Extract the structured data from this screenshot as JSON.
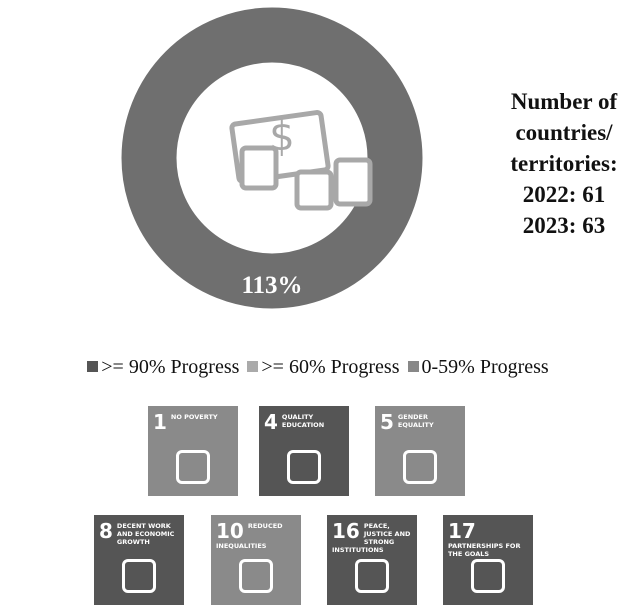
{
  "chart_data": {
    "type": "donut",
    "values": [
      113
    ],
    "value_labels": [
      "113%"
    ],
    "color": "#6f6f6f",
    "annotation": [
      "Number of",
      "countries/",
      "territories:",
      "2022: 61",
      "2023: 63"
    ],
    "legend": [
      {
        "name": ">= 90% Progress",
        "color": "#555555"
      },
      {
        "name": ">= 60% Progress",
        "color": "#aaaaaa"
      },
      {
        "name": "0-59% Progress",
        "color": "#888888"
      }
    ]
  },
  "goals": [
    {
      "number": "1",
      "label": "NO POVERTY",
      "color": "#8a8a8a"
    },
    {
      "number": "4",
      "label": "QUALITY EDUCATION",
      "color": "#555555"
    },
    {
      "number": "5",
      "label": "GENDER EQUALITY",
      "color": "#8a8a8a"
    },
    {
      "number": "8",
      "label": "DECENT WORK AND ECONOMIC GROWTH",
      "color": "#555555"
    },
    {
      "number": "10",
      "label": "REDUCED INEQUALITIES",
      "color": "#8a8a8a"
    },
    {
      "number": "16",
      "label": "PEACE, JUSTICE AND STRONG INSTITUTIONS",
      "color": "#555555"
    },
    {
      "number": "17",
      "label": "PARTNERSHIPS FOR THE GOALS",
      "color": "#555555"
    }
  ]
}
